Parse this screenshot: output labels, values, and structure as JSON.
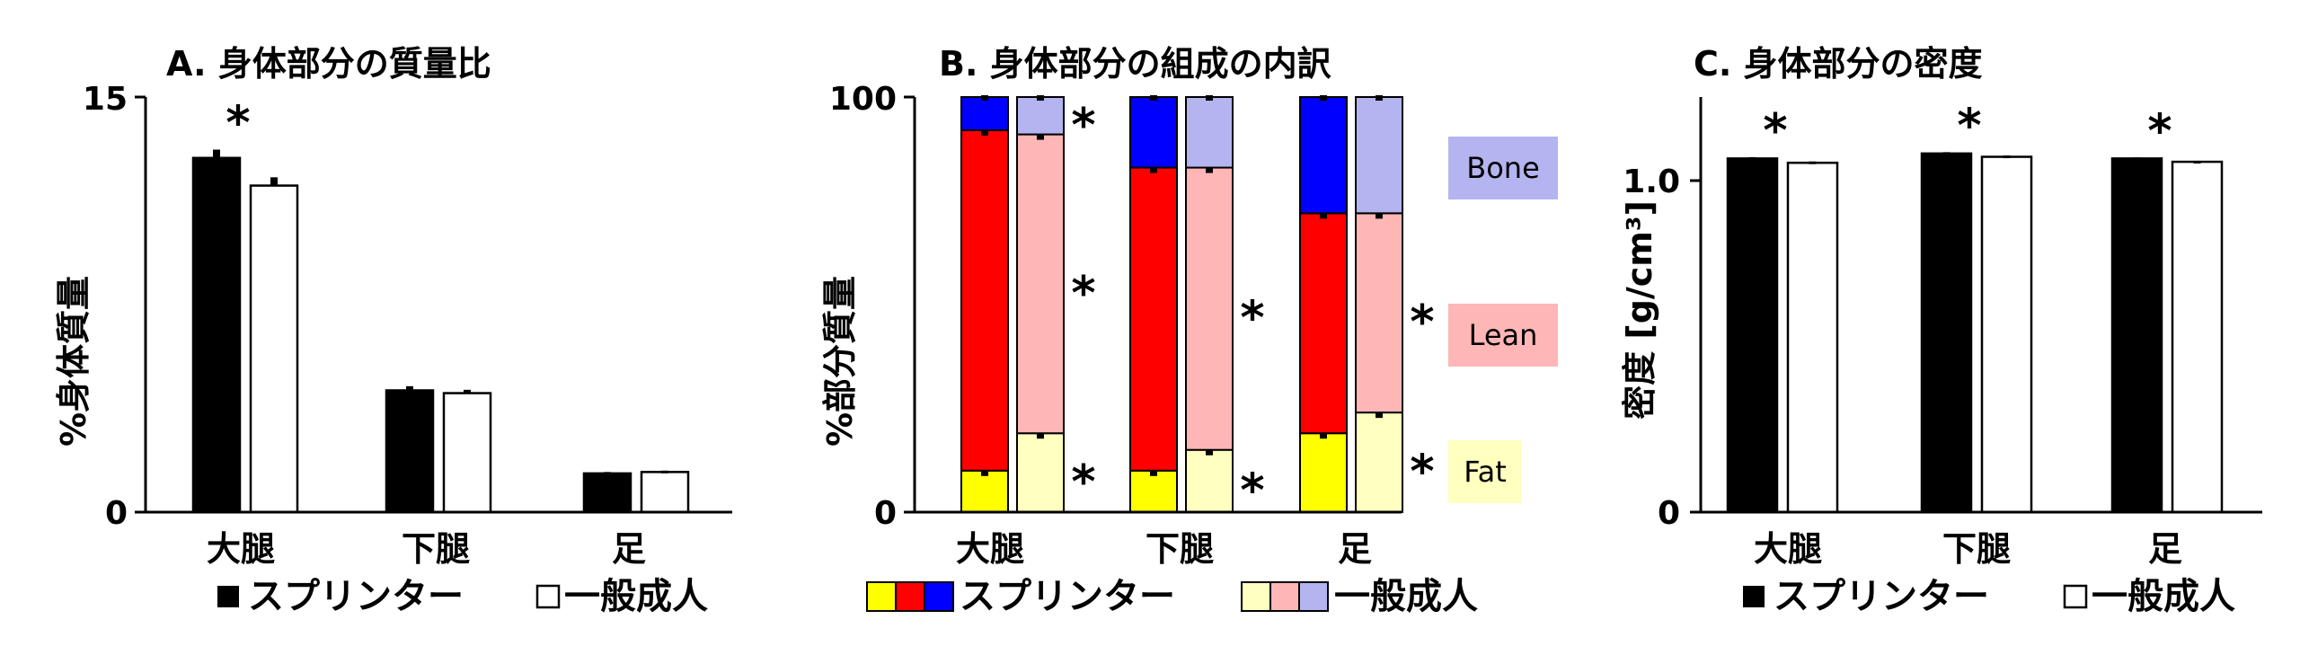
{
  "legend": {
    "sprinter": "スプリンター",
    "general": "一般成人"
  },
  "colors": {
    "sprinter_bar": "#000000",
    "general_bar": "#ffffff",
    "fat_sprinter": "#ffff00",
    "lean_sprinter": "#ff0000",
    "bone_sprinter": "#0000ff",
    "fat_general": "#ffffc0",
    "lean_general": "#ffb6b6",
    "bone_general": "#b4b4f0",
    "fat_box": "#ffffc0",
    "lean_box": "#ffb6b6",
    "bone_box": "#b4b4f0"
  },
  "chart_data": [
    {
      "type": "bar",
      "title": "A. 身体部分の質量比",
      "ylabel": "%身体質量",
      "categories": [
        "大腿",
        "下腿",
        "足"
      ],
      "series": [
        {
          "name": "スプリンター",
          "values": [
            12.8,
            4.4,
            1.4
          ],
          "errors": [
            0.3,
            0.15,
            0.05
          ]
        },
        {
          "name": "一般成人",
          "values": [
            11.8,
            4.3,
            1.45
          ],
          "errors": [
            0.3,
            0.12,
            0.05
          ]
        }
      ],
      "ylim": [
        0,
        15
      ],
      "yticks": [
        "0",
        "15"
      ],
      "ytick_values": [
        0,
        15
      ],
      "significance": [
        "*",
        "",
        ""
      ]
    },
    {
      "type": "bar",
      "stacked": true,
      "title": "B. 身体部分の組成の内訳",
      "ylabel": "%部分質量",
      "categories": [
        "大腿",
        "下腿",
        "足"
      ],
      "components": [
        "Fat",
        "Lean",
        "Bone"
      ],
      "series": [
        {
          "name": "スプリンター",
          "fat": [
            10,
            10,
            19
          ],
          "lean": [
            82,
            73,
            53
          ],
          "bone": [
            8,
            17,
            28
          ]
        },
        {
          "name": "一般成人",
          "fat": [
            19,
            15,
            24
          ],
          "lean": [
            72,
            68,
            48
          ],
          "bone": [
            9,
            17,
            28
          ]
        }
      ],
      "ylim": [
        0,
        100
      ],
      "yticks": [
        "0",
        "100"
      ],
      "ytick_values": [
        0,
        100
      ],
      "component_labels": [
        "Bone",
        "Lean",
        "Fat"
      ],
      "significance": {
        "bone": [
          "*",
          "",
          ""
        ],
        "lean": [
          "*",
          "*",
          "*"
        ],
        "fat": [
          "*",
          "*",
          "*"
        ]
      }
    },
    {
      "type": "bar",
      "title": "C. 身体部分の密度",
      "ylabel": "密度 [g/cm³]",
      "categories": [
        "大腿",
        "下腿",
        "足"
      ],
      "series": [
        {
          "name": "スプリンター",
          "values": [
            1.065,
            1.08,
            1.065
          ],
          "errors": [
            0.004,
            0.004,
            0.003
          ]
        },
        {
          "name": "一般成人",
          "values": [
            1.052,
            1.07,
            1.055
          ],
          "errors": [
            0.004,
            0.004,
            0.003
          ]
        }
      ],
      "ylim": [
        0,
        1.25
      ],
      "yticks": [
        "0",
        "1.0"
      ],
      "ytick_values": [
        0,
        1.0
      ],
      "significance": [
        "*",
        "*",
        "*"
      ]
    }
  ]
}
